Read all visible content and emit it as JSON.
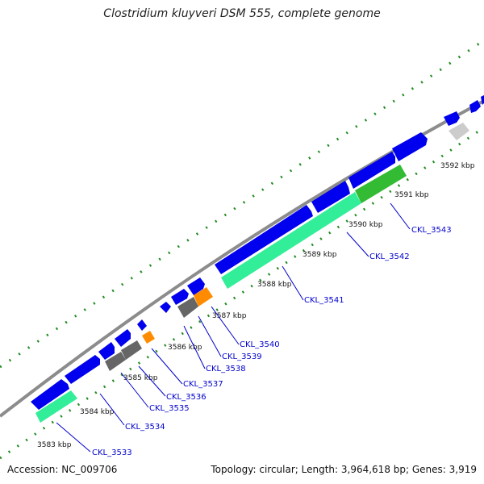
{
  "title": "Clostridium kluyveri DSM 555, complete genome",
  "footer": {
    "accession": "Accession: NC_009706",
    "summary": "Topology: circular; Length: 3,964,618 bp; Genes: 3,919"
  },
  "scale_labels": [
    "3583 kbp",
    "3584 kbp",
    "3585 kbp",
    "3586 kbp",
    "3587 kbp",
    "3588 kbp",
    "3589 kbp",
    "3590 kbp",
    "3591 kbp",
    "3592 kbp"
  ],
  "gene_labels": [
    "CKL_3533",
    "CKL_3534",
    "CKL_3535",
    "CKL_3536",
    "CKL_3537",
    "CKL_3538",
    "CKL_3539",
    "CKL_3540",
    "CKL_3541",
    "CKL_3542",
    "CKL_3543"
  ],
  "colors": {
    "backbone": "#8c8c8c",
    "cds": "#0000ee",
    "gene_green": "#33ee99",
    "gene_darkgreen": "#33bb33",
    "orange": "#ff8c00",
    "gray": "#666666",
    "lightgray": "#cccccc",
    "ticks": "#228b22",
    "label_line": "#0000cc"
  }
}
